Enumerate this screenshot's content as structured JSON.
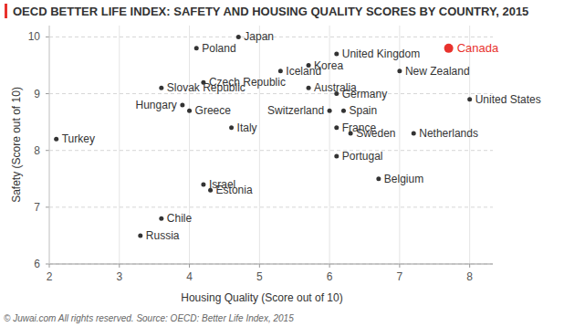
{
  "chart_data": {
    "type": "scatter",
    "title": "OECD BETTER LIFE INDEX: SAFETY AND HOUSING QUALITY SCORES BY COUNTRY, 2015",
    "x_label": "Housing Quality (Score out of 10)",
    "y_label": "Safety (Score out of 10)",
    "source": "© Juwai.com All rights reserved. Source: OECD: Better Life Index, 2015",
    "labels": [
      "Japan",
      "Poland",
      "United Kingdom",
      "Canada",
      "Iceland",
      "Korea",
      "New Zealand",
      "Czech Republic",
      "Australia",
      "Slovak Republic",
      "Germany",
      "United States",
      "Hungary",
      "Greece",
      "Switzerland",
      "Spain",
      "Italy",
      "France",
      "Sweden",
      "Netherlands",
      "Turkey",
      "Portugal",
      "Belgium",
      "Israel",
      "Estonia",
      "Chile",
      "Russia"
    ],
    "x": [
      4.7,
      4.1,
      6.1,
      7.7,
      5.3,
      5.7,
      7.0,
      4.2,
      5.7,
      3.6,
      6.1,
      8.0,
      3.9,
      4.0,
      6.0,
      6.2,
      4.6,
      6.1,
      6.3,
      7.2,
      2.1,
      6.1,
      6.7,
      4.2,
      4.3,
      3.6,
      3.3
    ],
    "values": [
      10.0,
      9.8,
      9.7,
      9.8,
      9.4,
      9.5,
      9.4,
      9.2,
      9.1,
      9.1,
      9.0,
      8.9,
      8.8,
      8.7,
      8.7,
      8.7,
      8.4,
      8.4,
      8.3,
      8.3,
      8.2,
      7.9,
      7.5,
      7.4,
      7.3,
      6.8,
      6.5
    ],
    "colors": [
      "#333333",
      "#333333",
      "#333333",
      "#e8322d",
      "#333333",
      "#333333",
      "#333333",
      "#333333",
      "#333333",
      "#333333",
      "#333333",
      "#333333",
      "#333333",
      "#333333",
      "#333333",
      "#333333",
      "#333333",
      "#333333",
      "#333333",
      "#333333",
      "#333333",
      "#333333",
      "#333333",
      "#333333",
      "#333333",
      "#333333",
      "#333333"
    ],
    "xlim": [
      2,
      8.33
    ],
    "ylim": [
      6,
      10.2
    ],
    "xticks": [
      2,
      3,
      4,
      5,
      6,
      7,
      8
    ],
    "yticks": [
      6,
      7,
      8,
      9,
      10
    ],
    "grid": true
  }
}
